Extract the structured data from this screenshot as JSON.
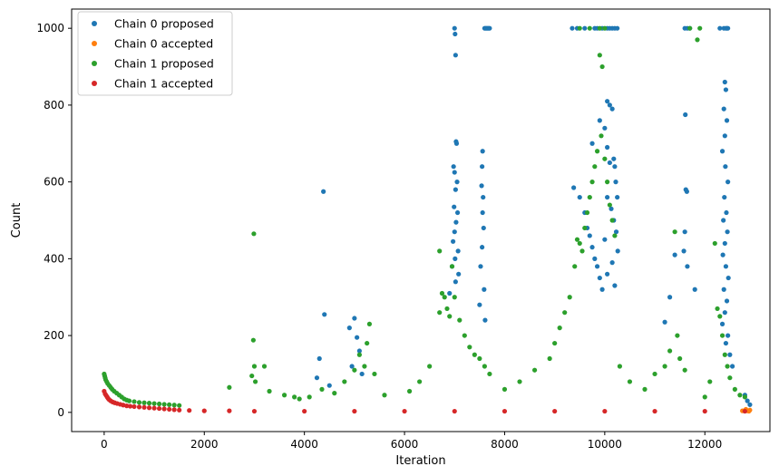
{
  "chart_data": {
    "type": "scatter",
    "xlabel": "Iteration",
    "ylabel": "Count",
    "xlim": [
      -650,
      13300
    ],
    "ylim": [
      -50,
      1050
    ],
    "xticks": [
      0,
      2000,
      4000,
      6000,
      8000,
      10000,
      12000
    ],
    "yticks": [
      0,
      200,
      400,
      600,
      800,
      1000
    ],
    "legend_position": "upper-left",
    "series": [
      {
        "name": "Chain 0 proposed",
        "color": "#1f77b4",
        "points": [
          [
            4380,
            575
          ],
          [
            4400,
            255
          ],
          [
            4300,
            140
          ],
          [
            4250,
            90
          ],
          [
            4500,
            70
          ],
          [
            4900,
            220
          ],
          [
            5000,
            245
          ],
          [
            5050,
            195
          ],
          [
            5100,
            160
          ],
          [
            4950,
            120
          ],
          [
            5150,
            100
          ],
          [
            7000,
            1000
          ],
          [
            7010,
            985
          ],
          [
            7020,
            930
          ],
          [
            7030,
            705
          ],
          [
            7040,
            700
          ],
          [
            6980,
            640
          ],
          [
            7000,
            625
          ],
          [
            7050,
            600
          ],
          [
            7020,
            580
          ],
          [
            6990,
            535
          ],
          [
            7060,
            520
          ],
          [
            7030,
            495
          ],
          [
            7000,
            470
          ],
          [
            6970,
            445
          ],
          [
            7070,
            420
          ],
          [
            7010,
            400
          ],
          [
            6950,
            380
          ],
          [
            7080,
            360
          ],
          [
            7020,
            340
          ],
          [
            6900,
            310
          ],
          [
            7600,
            1000
          ],
          [
            7620,
            1000
          ],
          [
            7640,
            1000
          ],
          [
            7660,
            1000
          ],
          [
            7680,
            1000
          ],
          [
            7700,
            1000
          ],
          [
            7560,
            680
          ],
          [
            7550,
            640
          ],
          [
            7540,
            590
          ],
          [
            7570,
            560
          ],
          [
            7560,
            520
          ],
          [
            7580,
            480
          ],
          [
            7550,
            430
          ],
          [
            7520,
            380
          ],
          [
            7590,
            320
          ],
          [
            7500,
            280
          ],
          [
            7610,
            240
          ],
          [
            9350,
            1000
          ],
          [
            9450,
            1000
          ],
          [
            9600,
            1000
          ],
          [
            9800,
            1000
          ],
          [
            9850,
            1000
          ],
          [
            9950,
            1000
          ],
          [
            10050,
            1000
          ],
          [
            10100,
            1000
          ],
          [
            10150,
            1000
          ],
          [
            10200,
            1000
          ],
          [
            10250,
            1000
          ],
          [
            9380,
            585
          ],
          [
            9500,
            560
          ],
          [
            9600,
            520
          ],
          [
            9650,
            480
          ],
          [
            9700,
            460
          ],
          [
            9750,
            430
          ],
          [
            9800,
            400
          ],
          [
            9850,
            380
          ],
          [
            9900,
            350
          ],
          [
            9950,
            320
          ],
          [
            9750,
            700
          ],
          [
            9900,
            760
          ],
          [
            10000,
            740
          ],
          [
            10050,
            810
          ],
          [
            10100,
            800
          ],
          [
            10150,
            790
          ],
          [
            10050,
            690
          ],
          [
            10180,
            660
          ],
          [
            10100,
            650
          ],
          [
            10200,
            640
          ],
          [
            10220,
            600
          ],
          [
            10250,
            560
          ],
          [
            10050,
            560
          ],
          [
            10130,
            530
          ],
          [
            10180,
            500
          ],
          [
            10230,
            470
          ],
          [
            10000,
            450
          ],
          [
            10260,
            420
          ],
          [
            10150,
            390
          ],
          [
            10050,
            360
          ],
          [
            10200,
            330
          ],
          [
            11600,
            1000
          ],
          [
            11650,
            1000
          ],
          [
            11700,
            1000
          ],
          [
            12300,
            1000
          ],
          [
            12380,
            1000
          ],
          [
            12420,
            1000
          ],
          [
            12440,
            1000
          ],
          [
            12460,
            1000
          ],
          [
            11610,
            775
          ],
          [
            11620,
            580
          ],
          [
            11640,
            575
          ],
          [
            11600,
            470
          ],
          [
            11580,
            420
          ],
          [
            11650,
            380
          ],
          [
            11400,
            410
          ],
          [
            11300,
            300
          ],
          [
            11200,
            235
          ],
          [
            11800,
            320
          ],
          [
            12400,
            860
          ],
          [
            12420,
            840
          ],
          [
            12380,
            790
          ],
          [
            12440,
            760
          ],
          [
            12400,
            720
          ],
          [
            12350,
            680
          ],
          [
            12410,
            640
          ],
          [
            12460,
            600
          ],
          [
            12390,
            560
          ],
          [
            12430,
            520
          ],
          [
            12370,
            500
          ],
          [
            12450,
            470
          ],
          [
            12400,
            440
          ],
          [
            12360,
            410
          ],
          [
            12420,
            380
          ],
          [
            12470,
            350
          ],
          [
            12380,
            320
          ],
          [
            12440,
            290
          ],
          [
            12400,
            260
          ],
          [
            12350,
            230
          ],
          [
            12460,
            200
          ],
          [
            12420,
            180
          ],
          [
            12800,
            45
          ],
          [
            12850,
            30
          ],
          [
            12900,
            20
          ],
          [
            12500,
            150
          ],
          [
            12550,
            120
          ]
        ]
      },
      {
        "name": "Chain 0 accepted",
        "color": "#ff7f0e",
        "points": [
          [
            12800,
            5
          ],
          [
            12850,
            4
          ],
          [
            12880,
            3
          ],
          [
            12900,
            6
          ],
          [
            12820,
            8
          ],
          [
            12750,
            4
          ]
        ]
      },
      {
        "name": "Chain 1 proposed",
        "color": "#2ca02c",
        "points": [
          [
            0,
            100
          ],
          [
            10,
            95
          ],
          [
            20,
            90
          ],
          [
            30,
            85
          ],
          [
            50,
            80
          ],
          [
            70,
            75
          ],
          [
            100,
            70
          ],
          [
            130,
            65
          ],
          [
            160,
            60
          ],
          [
            200,
            55
          ],
          [
            250,
            50
          ],
          [
            300,
            45
          ],
          [
            350,
            40
          ],
          [
            400,
            35
          ],
          [
            450,
            32
          ],
          [
            500,
            30
          ],
          [
            600,
            28
          ],
          [
            700,
            26
          ],
          [
            800,
            25
          ],
          [
            900,
            24
          ],
          [
            1000,
            23
          ],
          [
            1100,
            22
          ],
          [
            1200,
            21
          ],
          [
            1300,
            20
          ],
          [
            1400,
            19
          ],
          [
            1500,
            18
          ],
          [
            2990,
            465
          ],
          [
            2980,
            188
          ],
          [
            3000,
            120
          ],
          [
            2950,
            95
          ],
          [
            3020,
            80
          ],
          [
            2500,
            65
          ],
          [
            3200,
            120
          ],
          [
            3300,
            55
          ],
          [
            3600,
            45
          ],
          [
            3800,
            40
          ],
          [
            3900,
            35
          ],
          [
            4100,
            40
          ],
          [
            4350,
            60
          ],
          [
            4600,
            50
          ],
          [
            4800,
            80
          ],
          [
            5000,
            110
          ],
          [
            5100,
            150
          ],
          [
            5200,
            120
          ],
          [
            5300,
            230
          ],
          [
            5250,
            180
          ],
          [
            5400,
            100
          ],
          [
            5600,
            45
          ],
          [
            6100,
            55
          ],
          [
            6300,
            80
          ],
          [
            6500,
            120
          ],
          [
            6700,
            260
          ],
          [
            6750,
            310
          ],
          [
            6800,
            300
          ],
          [
            6850,
            270
          ],
          [
            6900,
            250
          ],
          [
            6700,
            420
          ],
          [
            6950,
            380
          ],
          [
            7000,
            300
          ],
          [
            7100,
            240
          ],
          [
            7200,
            200
          ],
          [
            7300,
            170
          ],
          [
            7400,
            150
          ],
          [
            7500,
            140
          ],
          [
            7600,
            120
          ],
          [
            7700,
            100
          ],
          [
            8000,
            60
          ],
          [
            8300,
            80
          ],
          [
            8600,
            110
          ],
          [
            8900,
            140
          ],
          [
            9000,
            180
          ],
          [
            9100,
            220
          ],
          [
            9200,
            260
          ],
          [
            9300,
            300
          ],
          [
            9400,
            380
          ],
          [
            9450,
            450
          ],
          [
            9500,
            440
          ],
          [
            9550,
            420
          ],
          [
            9600,
            480
          ],
          [
            9650,
            520
          ],
          [
            9700,
            560
          ],
          [
            9750,
            600
          ],
          [
            9800,
            640
          ],
          [
            9850,
            680
          ],
          [
            9900,
            930
          ],
          [
            9950,
            900
          ],
          [
            9930,
            720
          ],
          [
            10000,
            660
          ],
          [
            10050,
            600
          ],
          [
            10100,
            540
          ],
          [
            10150,
            500
          ],
          [
            10200,
            460
          ],
          [
            9500,
            1000
          ],
          [
            9700,
            1000
          ],
          [
            9900,
            1000
          ],
          [
            10000,
            1000
          ],
          [
            10300,
            120
          ],
          [
            10500,
            80
          ],
          [
            10800,
            60
          ],
          [
            11000,
            100
          ],
          [
            11200,
            120
          ],
          [
            11300,
            160
          ],
          [
            11400,
            470
          ],
          [
            11450,
            200
          ],
          [
            11500,
            140
          ],
          [
            11600,
            110
          ],
          [
            11700,
            1000
          ],
          [
            11850,
            970
          ],
          [
            11900,
            1000
          ],
          [
            12000,
            40
          ],
          [
            12100,
            80
          ],
          [
            12200,
            440
          ],
          [
            12250,
            270
          ],
          [
            12300,
            250
          ],
          [
            12350,
            200
          ],
          [
            12400,
            150
          ],
          [
            12450,
            120
          ],
          [
            12500,
            90
          ],
          [
            12600,
            60
          ],
          [
            12700,
            45
          ],
          [
            12800,
            40
          ]
        ]
      },
      {
        "name": "Chain 1 accepted",
        "color": "#d62728",
        "points": [
          [
            0,
            55
          ],
          [
            20,
            48
          ],
          [
            40,
            44
          ],
          [
            60,
            40
          ],
          [
            80,
            36
          ],
          [
            100,
            33
          ],
          [
            130,
            30
          ],
          [
            170,
            27
          ],
          [
            210,
            25
          ],
          [
            260,
            23
          ],
          [
            320,
            21
          ],
          [
            380,
            19
          ],
          [
            450,
            17
          ],
          [
            520,
            16
          ],
          [
            600,
            15
          ],
          [
            700,
            14
          ],
          [
            800,
            13
          ],
          [
            900,
            12
          ],
          [
            1000,
            11
          ],
          [
            1100,
            10
          ],
          [
            1200,
            9
          ],
          [
            1300,
            8
          ],
          [
            1400,
            7
          ],
          [
            1500,
            6
          ],
          [
            1700,
            5
          ],
          [
            2000,
            4
          ],
          [
            2500,
            4
          ],
          [
            3000,
            3
          ],
          [
            4000,
            3
          ],
          [
            5000,
            3
          ],
          [
            6000,
            3
          ],
          [
            7000,
            3
          ],
          [
            8000,
            3
          ],
          [
            9000,
            3
          ],
          [
            10000,
            3
          ],
          [
            11000,
            3
          ],
          [
            12000,
            3
          ],
          [
            12800,
            3
          ]
        ]
      }
    ]
  }
}
